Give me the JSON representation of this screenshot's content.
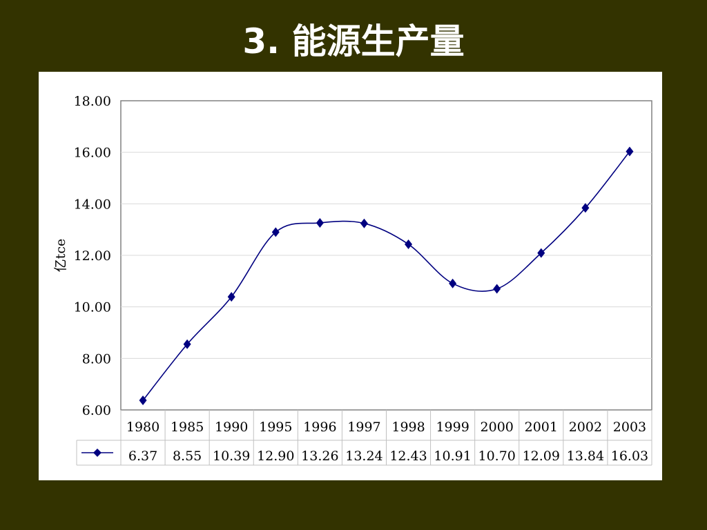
{
  "slide": {
    "title": "3. 能源生产量"
  },
  "chart_data": {
    "type": "line",
    "ylabel": "亿tce",
    "ylim": [
      6.0,
      18.0
    ],
    "y_ticks": [
      "6.00",
      "8.00",
      "10.00",
      "12.00",
      "14.00",
      "16.00",
      "18.00"
    ],
    "categories": [
      "1980",
      "1985",
      "1990",
      "1995",
      "1996",
      "1997",
      "1998",
      "1999",
      "2000",
      "2001",
      "2002",
      "2003"
    ],
    "series": [
      {
        "values": [
          6.37,
          8.55,
          10.39,
          12.9,
          13.26,
          13.24,
          12.43,
          10.91,
          10.7,
          12.09,
          13.84,
          16.03
        ],
        "labels": [
          "6.37",
          "8.55",
          "10.39",
          "12.90",
          "13.26",
          "13.24",
          "12.43",
          "10.91",
          "10.70",
          "12.09",
          "13.84",
          "16.03"
        ],
        "color": "#000080",
        "marker": "diamond"
      }
    ],
    "grid": true,
    "legend": "data-table"
  }
}
